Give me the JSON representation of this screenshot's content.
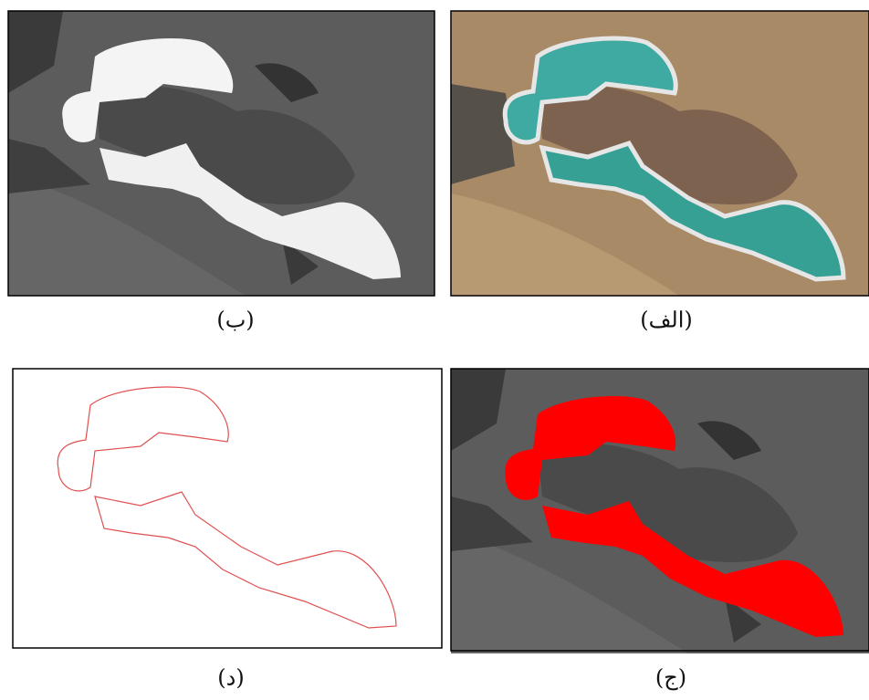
{
  "panels": [
    {
      "caption": "(ب)"
    },
    {
      "caption": "(الف)"
    },
    {
      "caption": "(د)"
    },
    {
      "caption": "(ج)"
    }
  ]
}
